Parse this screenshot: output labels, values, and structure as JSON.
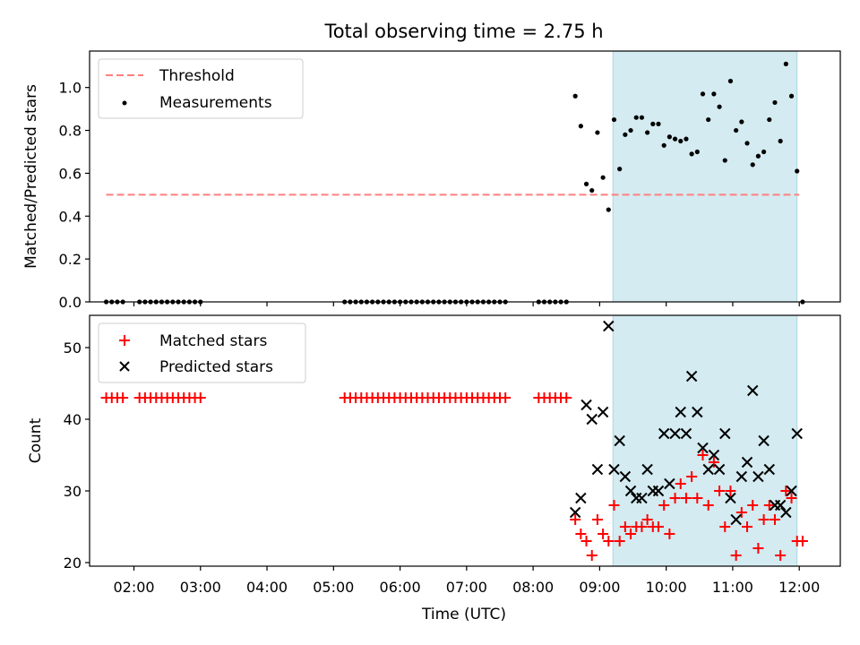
{
  "figure": {
    "title": "Total observing time = 2.75 h",
    "xlabel": "Time (UTC)"
  },
  "chart_data": [
    {
      "type": "scatter",
      "ylabel": "Matched/Predicted stars",
      "xlim": [
        "01:20",
        "12:37"
      ],
      "ylim": [
        0,
        1.17
      ],
      "yticks": [
        0.0,
        0.2,
        0.4,
        0.6,
        0.8,
        1.0
      ],
      "ytick_labels": [
        "0.0",
        "0.2",
        "0.4",
        "0.6",
        "0.8",
        "1.0"
      ],
      "highlight_span": {
        "start": "09:12",
        "end": "11:58",
        "color": "#d3ebf1"
      },
      "legend_position": "top-left",
      "threshold": {
        "name": "Threshold",
        "value": 0.5,
        "x_range": [
          "01:35",
          "12:00"
        ],
        "color": "#ff7f7f",
        "style": "dashed"
      },
      "series": [
        {
          "name": "Measurements",
          "color": "#000000",
          "points": [
            [
              "01:35",
              0.0
            ],
            [
              "01:40",
              0.0
            ],
            [
              "01:45",
              0.0
            ],
            [
              "01:50",
              0.0
            ],
            [
              "02:05",
              0.0
            ],
            [
              "02:10",
              0.0
            ],
            [
              "02:15",
              0.0
            ],
            [
              "02:20",
              0.0
            ],
            [
              "02:25",
              0.0
            ],
            [
              "02:30",
              0.0
            ],
            [
              "02:35",
              0.0
            ],
            [
              "02:40",
              0.0
            ],
            [
              "02:45",
              0.0
            ],
            [
              "02:50",
              0.0
            ],
            [
              "02:55",
              0.0
            ],
            [
              "03:00",
              0.0
            ],
            [
              "05:10",
              0.0
            ],
            [
              "05:15",
              0.0
            ],
            [
              "05:20",
              0.0
            ],
            [
              "05:25",
              0.0
            ],
            [
              "05:30",
              0.0
            ],
            [
              "05:35",
              0.0
            ],
            [
              "05:40",
              0.0
            ],
            [
              "05:45",
              0.0
            ],
            [
              "05:50",
              0.0
            ],
            [
              "05:55",
              0.0
            ],
            [
              "06:00",
              0.0
            ],
            [
              "06:05",
              0.0
            ],
            [
              "06:10",
              0.0
            ],
            [
              "06:15",
              0.0
            ],
            [
              "06:20",
              0.0
            ],
            [
              "06:25",
              0.0
            ],
            [
              "06:30",
              0.0
            ],
            [
              "06:35",
              0.0
            ],
            [
              "06:40",
              0.0
            ],
            [
              "06:45",
              0.0
            ],
            [
              "06:50",
              0.0
            ],
            [
              "06:55",
              0.0
            ],
            [
              "07:00",
              0.0
            ],
            [
              "07:05",
              0.0
            ],
            [
              "07:10",
              0.0
            ],
            [
              "07:15",
              0.0
            ],
            [
              "07:20",
              0.0
            ],
            [
              "07:25",
              0.0
            ],
            [
              "07:30",
              0.0
            ],
            [
              "07:35",
              0.0
            ],
            [
              "08:05",
              0.0
            ],
            [
              "08:10",
              0.0
            ],
            [
              "08:15",
              0.0
            ],
            [
              "08:20",
              0.0
            ],
            [
              "08:25",
              0.0
            ],
            [
              "08:30",
              0.0
            ],
            [
              "08:38",
              0.96
            ],
            [
              "08:43",
              0.82
            ],
            [
              "08:48",
              0.55
            ],
            [
              "08:53",
              0.52
            ],
            [
              "08:58",
              0.79
            ],
            [
              "09:03",
              0.58
            ],
            [
              "09:08",
              0.43
            ],
            [
              "09:13",
              0.85
            ],
            [
              "09:18",
              0.62
            ],
            [
              "09:23",
              0.78
            ],
            [
              "09:28",
              0.8
            ],
            [
              "09:33",
              0.86
            ],
            [
              "09:38",
              0.86
            ],
            [
              "09:43",
              0.79
            ],
            [
              "09:48",
              0.83
            ],
            [
              "09:53",
              0.83
            ],
            [
              "09:58",
              0.73
            ],
            [
              "10:03",
              0.77
            ],
            [
              "10:08",
              0.76
            ],
            [
              "10:13",
              0.75
            ],
            [
              "10:18",
              0.76
            ],
            [
              "10:23",
              0.69
            ],
            [
              "10:28",
              0.7
            ],
            [
              "10:33",
              0.97
            ],
            [
              "10:38",
              0.85
            ],
            [
              "10:43",
              0.97
            ],
            [
              "10:48",
              0.91
            ],
            [
              "10:53",
              0.66
            ],
            [
              "10:58",
              1.03
            ],
            [
              "11:03",
              0.8
            ],
            [
              "11:08",
              0.84
            ],
            [
              "11:13",
              0.74
            ],
            [
              "11:18",
              0.64
            ],
            [
              "11:23",
              0.68
            ],
            [
              "11:28",
              0.7
            ],
            [
              "11:33",
              0.85
            ],
            [
              "11:38",
              0.93
            ],
            [
              "11:43",
              0.75
            ],
            [
              "11:48",
              1.11
            ],
            [
              "11:53",
              0.96
            ],
            [
              "11:58",
              0.61
            ],
            [
              "12:03",
              0.0
            ]
          ]
        }
      ]
    },
    {
      "type": "scatter",
      "ylabel": "Count",
      "xlim": [
        "01:20",
        "12:37"
      ],
      "ylim": [
        19.5,
        54.5
      ],
      "yticks": [
        20,
        30,
        40,
        50
      ],
      "ytick_labels": [
        "20",
        "30",
        "40",
        "50"
      ],
      "xticks": [
        "02:00",
        "03:00",
        "04:00",
        "05:00",
        "06:00",
        "07:00",
        "08:00",
        "09:00",
        "10:00",
        "11:00",
        "12:00"
      ],
      "xtick_labels": [
        "02:00",
        "03:00",
        "04:00",
        "05:00",
        "06:00",
        "07:00",
        "08:00",
        "09:00",
        "10:00",
        "11:00",
        "12:00"
      ],
      "highlight_span": {
        "start": "09:12",
        "end": "11:58",
        "color": "#d3ebf1"
      },
      "legend_position": "top-left",
      "series": [
        {
          "name": "Matched stars",
          "marker": "plus",
          "color": "#ff0000",
          "points": [
            [
              "01:35",
              43
            ],
            [
              "01:40",
              43
            ],
            [
              "01:45",
              43
            ],
            [
              "01:50",
              43
            ],
            [
              "02:05",
              43
            ],
            [
              "02:10",
              43
            ],
            [
              "02:15",
              43
            ],
            [
              "02:20",
              43
            ],
            [
              "02:25",
              43
            ],
            [
              "02:30",
              43
            ],
            [
              "02:35",
              43
            ],
            [
              "02:40",
              43
            ],
            [
              "02:45",
              43
            ],
            [
              "02:50",
              43
            ],
            [
              "02:55",
              43
            ],
            [
              "03:00",
              43
            ],
            [
              "05:10",
              43
            ],
            [
              "05:15",
              43
            ],
            [
              "05:20",
              43
            ],
            [
              "05:25",
              43
            ],
            [
              "05:30",
              43
            ],
            [
              "05:35",
              43
            ],
            [
              "05:40",
              43
            ],
            [
              "05:45",
              43
            ],
            [
              "05:50",
              43
            ],
            [
              "05:55",
              43
            ],
            [
              "06:00",
              43
            ],
            [
              "06:05",
              43
            ],
            [
              "06:10",
              43
            ],
            [
              "06:15",
              43
            ],
            [
              "06:20",
              43
            ],
            [
              "06:25",
              43
            ],
            [
              "06:30",
              43
            ],
            [
              "06:35",
              43
            ],
            [
              "06:40",
              43
            ],
            [
              "06:45",
              43
            ],
            [
              "06:50",
              43
            ],
            [
              "06:55",
              43
            ],
            [
              "07:00",
              43
            ],
            [
              "07:05",
              43
            ],
            [
              "07:10",
              43
            ],
            [
              "07:15",
              43
            ],
            [
              "07:20",
              43
            ],
            [
              "07:25",
              43
            ],
            [
              "07:30",
              43
            ],
            [
              "07:35",
              43
            ],
            [
              "08:05",
              43
            ],
            [
              "08:10",
              43
            ],
            [
              "08:15",
              43
            ],
            [
              "08:20",
              43
            ],
            [
              "08:25",
              43
            ],
            [
              "08:30",
              43
            ],
            [
              "08:38",
              26
            ],
            [
              "08:43",
              24
            ],
            [
              "08:48",
              23
            ],
            [
              "08:53",
              21
            ],
            [
              "08:58",
              26
            ],
            [
              "09:03",
              24
            ],
            [
              "09:08",
              23
            ],
            [
              "09:13",
              28
            ],
            [
              "09:18",
              23
            ],
            [
              "09:23",
              25
            ],
            [
              "09:28",
              24
            ],
            [
              "09:33",
              25
            ],
            [
              "09:38",
              25
            ],
            [
              "09:43",
              26
            ],
            [
              "09:48",
              25
            ],
            [
              "09:53",
              25
            ],
            [
              "09:58",
              28
            ],
            [
              "10:03",
              24
            ],
            [
              "10:08",
              29
            ],
            [
              "10:13",
              31
            ],
            [
              "10:18",
              29
            ],
            [
              "10:23",
              32
            ],
            [
              "10:28",
              29
            ],
            [
              "10:33",
              35
            ],
            [
              "10:38",
              28
            ],
            [
              "10:43",
              34
            ],
            [
              "10:48",
              30
            ],
            [
              "10:53",
              25
            ],
            [
              "10:58",
              30
            ],
            [
              "11:03",
              21
            ],
            [
              "11:08",
              27
            ],
            [
              "11:13",
              25
            ],
            [
              "11:18",
              28
            ],
            [
              "11:23",
              22
            ],
            [
              "11:28",
              26
            ],
            [
              "11:33",
              28
            ],
            [
              "11:38",
              26
            ],
            [
              "11:43",
              21
            ],
            [
              "11:48",
              30
            ],
            [
              "11:53",
              29
            ],
            [
              "11:58",
              23
            ],
            [
              "12:03",
              23
            ]
          ]
        },
        {
          "name": "Predicted stars",
          "marker": "x",
          "color": "#000000",
          "points": [
            [
              "08:38",
              27
            ],
            [
              "08:43",
              29
            ],
            [
              "08:48",
              42
            ],
            [
              "08:53",
              40
            ],
            [
              "08:58",
              33
            ],
            [
              "09:03",
              41
            ],
            [
              "09:08",
              53
            ],
            [
              "09:13",
              33
            ],
            [
              "09:18",
              37
            ],
            [
              "09:23",
              32
            ],
            [
              "09:28",
              30
            ],
            [
              "09:33",
              29
            ],
            [
              "09:38",
              29
            ],
            [
              "09:43",
              33
            ],
            [
              "09:48",
              30
            ],
            [
              "09:53",
              30
            ],
            [
              "09:58",
              38
            ],
            [
              "10:03",
              31
            ],
            [
              "10:08",
              38
            ],
            [
              "10:13",
              41
            ],
            [
              "10:18",
              38
            ],
            [
              "10:23",
              46
            ],
            [
              "10:28",
              41
            ],
            [
              "10:33",
              36
            ],
            [
              "10:38",
              33
            ],
            [
              "10:43",
              35
            ],
            [
              "10:48",
              33
            ],
            [
              "10:53",
              38
            ],
            [
              "10:58",
              29
            ],
            [
              "11:03",
              26
            ],
            [
              "11:08",
              32
            ],
            [
              "11:13",
              34
            ],
            [
              "11:18",
              44
            ],
            [
              "11:23",
              32
            ],
            [
              "11:28",
              37
            ],
            [
              "11:33",
              33
            ],
            [
              "11:38",
              28
            ],
            [
              "11:43",
              28
            ],
            [
              "11:48",
              27
            ],
            [
              "11:53",
              30
            ],
            [
              "11:58",
              38
            ]
          ]
        }
      ]
    }
  ]
}
